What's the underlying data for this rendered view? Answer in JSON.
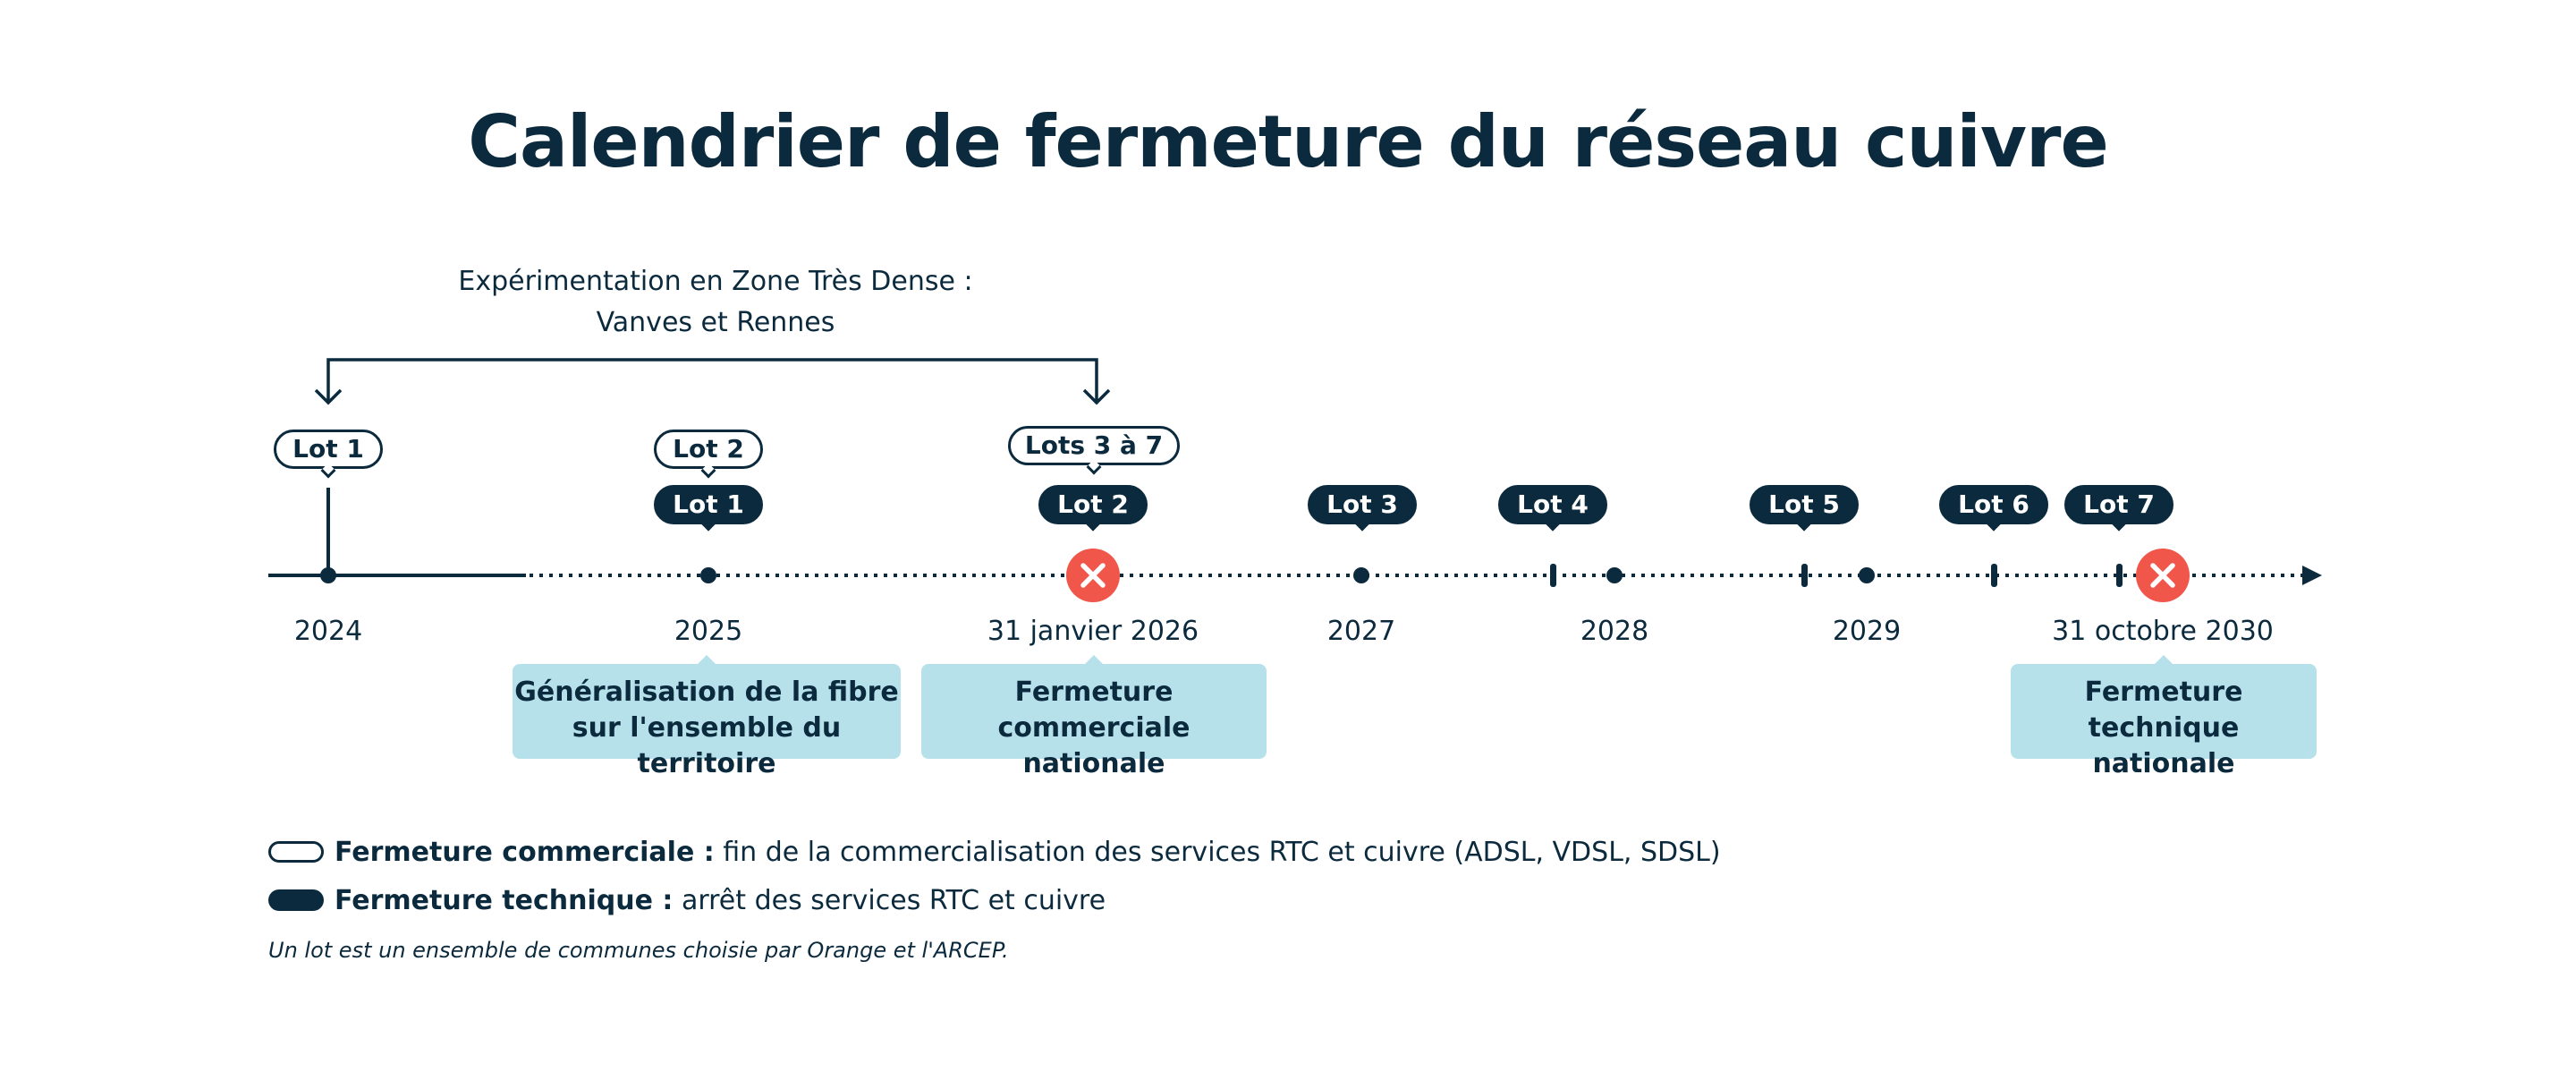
{
  "title": "Calendrier de fermeture du réseau cuivre",
  "experimentation": {
    "line1": "Expérimentation en Zone Très Dense :",
    "line2": "Vanves et Rennes"
  },
  "timeline": {
    "years": [
      "2024",
      "2025",
      "31 janvier 2026",
      "2027",
      "2028",
      "2029",
      "31 octobre 2030"
    ],
    "commercial_badges": [
      "Lot 1",
      "Lot 2",
      "Lots 3 à 7"
    ],
    "technical_badges": [
      "Lot 1",
      "Lot 2",
      "Lot 3",
      "Lot 4",
      "Lot 5",
      "Lot 6",
      "Lot 7"
    ],
    "milestones": [
      {
        "line1": "Généralisation de la fibre",
        "line2": "sur l'ensemble du territoire"
      },
      {
        "line1": "Fermeture commerciale",
        "line2": "nationale"
      },
      {
        "line1": "Fermeture technique",
        "line2": "nationale"
      }
    ]
  },
  "legend": {
    "commercial_term": "Fermeture commerciale :",
    "commercial_desc": " fin de la commercialisation des services RTC et cuivre (ADSL, VDSL, SDSL)",
    "technical_term": "Fermeture technique :",
    "technical_desc": " arrêt des services RTC et cuivre"
  },
  "footnote": "Un lot est un ensemble de communes choisie par Orange et l'ARCEP.",
  "colors": {
    "navy": "#0b2a3d",
    "light_blue": "#b7e1ea",
    "red": "#f0564a"
  }
}
